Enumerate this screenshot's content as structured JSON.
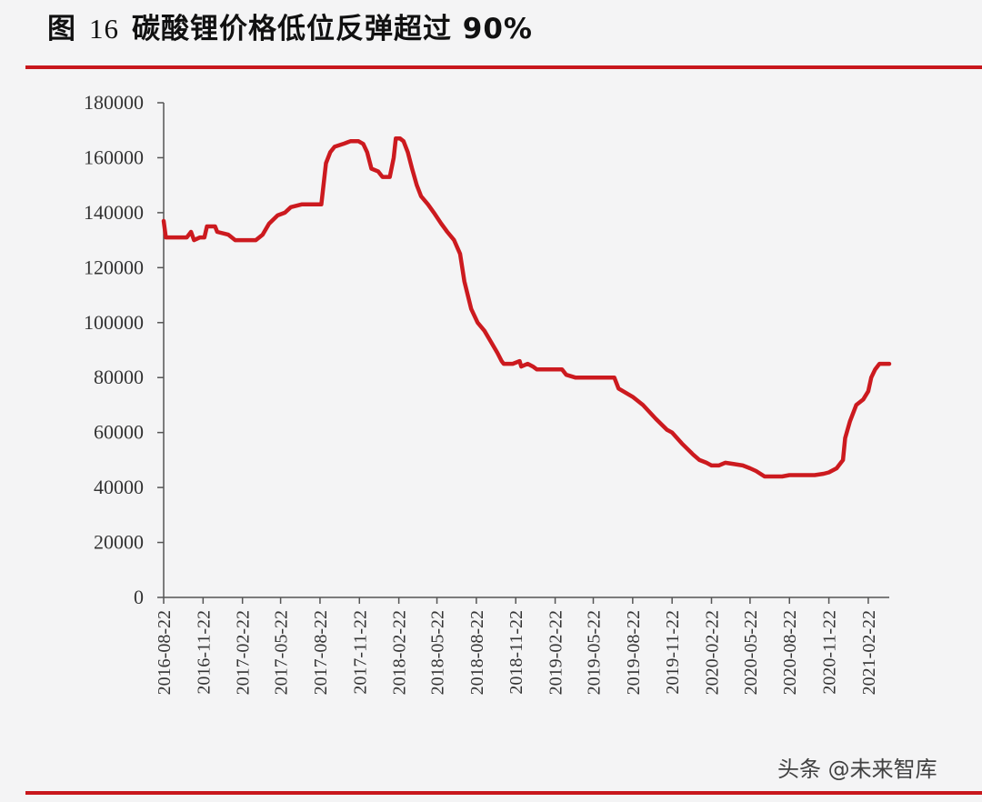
{
  "title": {
    "prefix": "图",
    "number": "16",
    "text": "碳酸锂价格低位反弹超过 90%"
  },
  "watermark": "头条 @未来智库",
  "colors": {
    "line": "#cc1a1f",
    "rule": "#c8171c",
    "axis": "#555555"
  },
  "chart_data": {
    "type": "line",
    "title": "",
    "xlabel": "",
    "ylabel": "",
    "ylim": [
      0,
      180000
    ],
    "yticks": [
      0,
      20000,
      40000,
      60000,
      80000,
      100000,
      120000,
      140000,
      160000,
      180000
    ],
    "xticks": [
      "2016-08-22",
      "2016-11-22",
      "2017-02-22",
      "2017-05-22",
      "2017-08-22",
      "2017-11-22",
      "2018-02-22",
      "2018-05-22",
      "2018-08-22",
      "2018-11-22",
      "2019-02-22",
      "2019-05-22",
      "2019-08-22",
      "2019-11-22",
      "2020-02-22",
      "2020-05-22",
      "2020-08-22",
      "2020-11-22",
      "2021-02-22"
    ],
    "x_start": "2016-08-22",
    "x_end": "2021-04-12",
    "grid": false,
    "series": [
      {
        "points": [
          [
            "2016-08-22",
            137000
          ],
          [
            "2016-08-27",
            131000
          ],
          [
            "2016-10-15",
            131000
          ],
          [
            "2016-10-25",
            133000
          ],
          [
            "2016-11-01",
            130000
          ],
          [
            "2016-11-15",
            131000
          ],
          [
            "2016-11-25",
            131000
          ],
          [
            "2016-12-01",
            135000
          ],
          [
            "2016-12-20",
            135000
          ],
          [
            "2016-12-25",
            133000
          ],
          [
            "2017-01-20",
            132000
          ],
          [
            "2017-02-05",
            130000
          ],
          [
            "2017-02-15",
            130000
          ],
          [
            "2017-03-05",
            130000
          ],
          [
            "2017-03-25",
            130000
          ],
          [
            "2017-04-10",
            132000
          ],
          [
            "2017-04-25",
            136000
          ],
          [
            "2017-05-15",
            139000
          ],
          [
            "2017-06-01",
            140000
          ],
          [
            "2017-06-15",
            142000
          ],
          [
            "2017-07-10",
            143000
          ],
          [
            "2017-07-25",
            143000
          ],
          [
            "2017-08-10",
            143000
          ],
          [
            "2017-08-25",
            143000
          ],
          [
            "2017-09-05",
            158000
          ],
          [
            "2017-09-15",
            162000
          ],
          [
            "2017-09-25",
            164000
          ],
          [
            "2017-10-15",
            165000
          ],
          [
            "2017-11-01",
            166000
          ],
          [
            "2017-11-20",
            166000
          ],
          [
            "2017-12-01",
            165000
          ],
          [
            "2017-12-10",
            162000
          ],
          [
            "2017-12-20",
            156000
          ],
          [
            "2018-01-05",
            155000
          ],
          [
            "2018-01-15",
            153000
          ],
          [
            "2018-02-01",
            153000
          ],
          [
            "2018-02-10",
            160000
          ],
          [
            "2018-02-15",
            167000
          ],
          [
            "2018-02-25",
            167000
          ],
          [
            "2018-03-05",
            166000
          ],
          [
            "2018-03-15",
            162000
          ],
          [
            "2018-03-25",
            156000
          ],
          [
            "2018-04-05",
            150000
          ],
          [
            "2018-04-15",
            146000
          ],
          [
            "2018-05-01",
            143000
          ],
          [
            "2018-05-15",
            140000
          ],
          [
            "2018-06-01",
            136000
          ],
          [
            "2018-06-15",
            133000
          ],
          [
            "2018-07-01",
            130000
          ],
          [
            "2018-07-15",
            125000
          ],
          [
            "2018-07-25",
            115000
          ],
          [
            "2018-08-10",
            105000
          ],
          [
            "2018-08-25",
            100000
          ],
          [
            "2018-09-10",
            97000
          ],
          [
            "2018-09-25",
            93000
          ],
          [
            "2018-10-10",
            89000
          ],
          [
            "2018-10-20",
            86000
          ],
          [
            "2018-10-25",
            85000
          ],
          [
            "2018-11-15",
            85000
          ],
          [
            "2018-12-01",
            86000
          ],
          [
            "2018-12-05",
            84000
          ],
          [
            "2018-12-20",
            85000
          ],
          [
            "2019-01-01",
            84000
          ],
          [
            "2019-01-10",
            83000
          ],
          [
            "2019-02-22",
            83000
          ],
          [
            "2019-03-10",
            83000
          ],
          [
            "2019-03-20",
            81000
          ],
          [
            "2019-04-10",
            80000
          ],
          [
            "2019-05-22",
            80000
          ],
          [
            "2019-06-10",
            80000
          ],
          [
            "2019-07-10",
            80000
          ],
          [
            "2019-07-20",
            76000
          ],
          [
            "2019-08-22",
            73000
          ],
          [
            "2019-09-15",
            70000
          ],
          [
            "2019-10-15",
            65000
          ],
          [
            "2019-11-10",
            61000
          ],
          [
            "2019-11-22",
            60000
          ],
          [
            "2019-12-15",
            56000
          ],
          [
            "2020-01-10",
            52000
          ],
          [
            "2020-01-25",
            50000
          ],
          [
            "2020-02-10",
            49000
          ],
          [
            "2020-02-22",
            48000
          ],
          [
            "2020-03-10",
            48000
          ],
          [
            "2020-03-25",
            49000
          ],
          [
            "2020-04-15",
            48500
          ],
          [
            "2020-05-05",
            48000
          ],
          [
            "2020-05-22",
            47000
          ],
          [
            "2020-06-05",
            46000
          ],
          [
            "2020-06-15",
            45000
          ],
          [
            "2020-06-25",
            44000
          ],
          [
            "2020-07-10",
            44000
          ],
          [
            "2020-08-05",
            44000
          ],
          [
            "2020-08-22",
            44500
          ],
          [
            "2020-09-20",
            44500
          ],
          [
            "2020-10-20",
            44500
          ],
          [
            "2020-11-10",
            45000
          ],
          [
            "2020-11-22",
            45500
          ],
          [
            "2020-12-10",
            47000
          ],
          [
            "2020-12-25",
            50000
          ],
          [
            "2020-12-30",
            58000
          ],
          [
            "2021-01-10",
            64000
          ],
          [
            "2021-01-25",
            70000
          ],
          [
            "2021-02-10",
            72000
          ],
          [
            "2021-02-22",
            75000
          ],
          [
            "2021-03-01",
            80000
          ],
          [
            "2021-03-10",
            83000
          ],
          [
            "2021-03-20",
            85000
          ],
          [
            "2021-04-12",
            85000
          ]
        ]
      }
    ]
  }
}
